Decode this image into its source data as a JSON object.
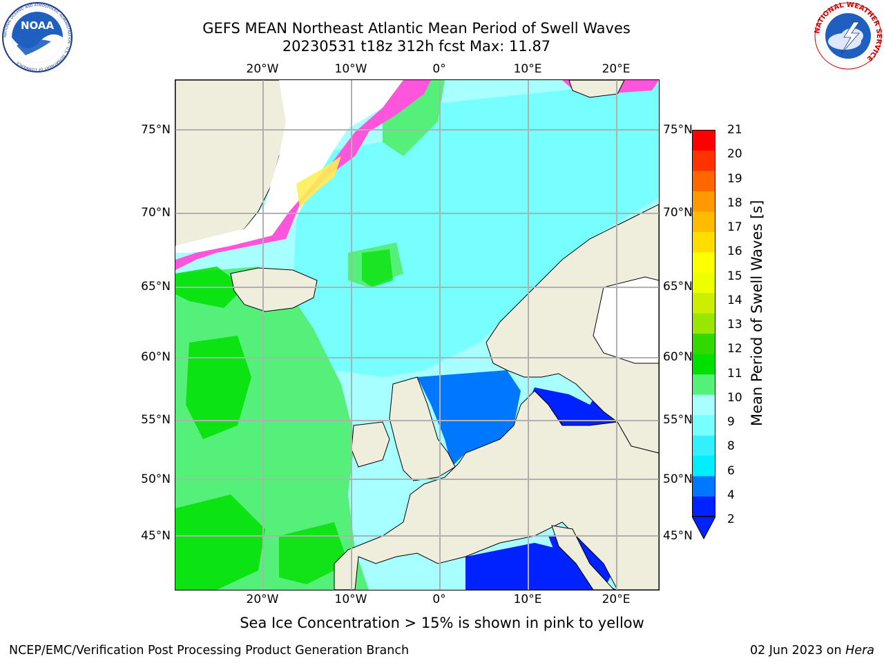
{
  "title_line1": "GEFS MEAN Northeast Atlantic Mean Period of Swell Waves",
  "title_line2": "20230531 t18z 312h fcst   Max: 11.87",
  "top_axis_labels": [
    "20°W",
    "10°W",
    "0°",
    "10°E",
    "20°E"
  ],
  "bottom_axis_labels": [
    "20°W",
    "10°W",
    "0°",
    "10°E",
    "20°E"
  ],
  "left_axis_labels": [
    "75°N",
    "70°N",
    "65°N",
    "60°N",
    "55°N",
    "50°N",
    "45°N"
  ],
  "right_axis_labels": [
    "75°N",
    "70°N",
    "65°N",
    "60°N",
    "55°N",
    "50°N",
    "45°N"
  ],
  "colorbar": {
    "title": "Mean Period of Swell Waves [s]",
    "ticks": [
      "21",
      "20",
      "19",
      "18",
      "17",
      "16",
      "15",
      "14",
      "13",
      "12",
      "11",
      "10",
      "9",
      "8",
      "6",
      "4",
      "2"
    ],
    "bands": [
      {
        "color": "#0022ff"
      },
      {
        "color": "#0077ff"
      },
      {
        "color": "#00eeff"
      },
      {
        "color": "#33f0ff"
      },
      {
        "color": "#77ffff"
      },
      {
        "color": "#a8ffff"
      },
      {
        "color": "#55f07a"
      },
      {
        "color": "#00e000"
      },
      {
        "color": "#33d800"
      },
      {
        "color": "#99e600"
      },
      {
        "color": "#ccee00"
      },
      {
        "color": "#eeff00"
      },
      {
        "color": "#ffff00"
      },
      {
        "color": "#ffdd00"
      },
      {
        "color": "#ffbb00"
      },
      {
        "color": "#ff9900"
      },
      {
        "color": "#ff6600"
      },
      {
        "color": "#ff3300"
      },
      {
        "color": "#ff0000"
      }
    ]
  },
  "note": "Sea Ice Concentration > 15% is shown in pink to yellow",
  "footer_left": "NCEP/EMC/Verification Post Processing Product Generation Branch",
  "footer_date": "02 Jun 2023 on ",
  "footer_host": "Hera",
  "logo_noaa_text": "NOAA",
  "logo_noaa_ring": "NATIONAL OCEANIC AND ATMOSPHERIC ADMINISTRATION · U.S. DEPARTMENT OF COMMERCE",
  "logo_nws_ring": "NATIONAL WEATHER SERVICE",
  "colors": {
    "land": "#efeedd",
    "ocean_light": "#a8ffff",
    "ocean_mid": "#55f07a",
    "ocean_green": "#00e000",
    "ocean_blue": "#0077ff",
    "ocean_dark": "#0022ff",
    "ice_pink": "#ff55dd",
    "ice_yellow": "#ffee55",
    "grid": "#b0b0b0"
  }
}
